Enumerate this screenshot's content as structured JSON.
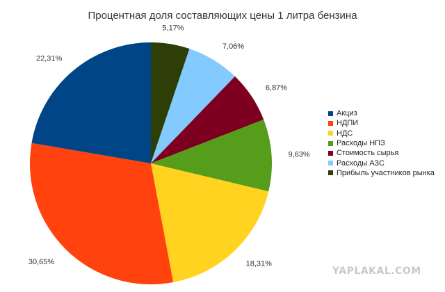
{
  "chart_data": {
    "type": "pie",
    "title": "Процентная доля составляющих цены 1 литра бензина",
    "start_angle_deg": 0,
    "direction": "clockwise",
    "slices": [
      {
        "name": "Прибыль участников рынка",
        "value": 5.17,
        "label": "5,17%",
        "color": "#2d3f06"
      },
      {
        "name": "Расходы АЗС",
        "value": 7.06,
        "label": "7,06%",
        "color": "#83caff"
      },
      {
        "name": "Стоимость сырья",
        "value": 6.87,
        "label": "6,87%",
        "color": "#7e0021"
      },
      {
        "name": "Расходы НПЗ",
        "value": 9.63,
        "label": "9,63%",
        "color": "#579d1c"
      },
      {
        "name": "НДС",
        "value": 18.31,
        "label": "18,31%",
        "color": "#ffd320"
      },
      {
        "name": "НДПИ",
        "value": 30.65,
        "label": "30,65%",
        "color": "#ff420e"
      },
      {
        "name": "Акциз",
        "value": 22.31,
        "label": "22,31%",
        "color": "#004586"
      }
    ],
    "legend": {
      "placement": "right",
      "items": [
        "Акциз",
        "НДПИ",
        "НДС",
        "Расходы НПЗ",
        "Стоимость сырья",
        "Расходы АЗС",
        "Прибыль участников рынка"
      ],
      "colors": [
        "#004586",
        "#ff420e",
        "#ffd320",
        "#579d1c",
        "#7e0021",
        "#83caff",
        "#2d3f06"
      ]
    }
  },
  "watermark": "YAPLAKAL.COM"
}
